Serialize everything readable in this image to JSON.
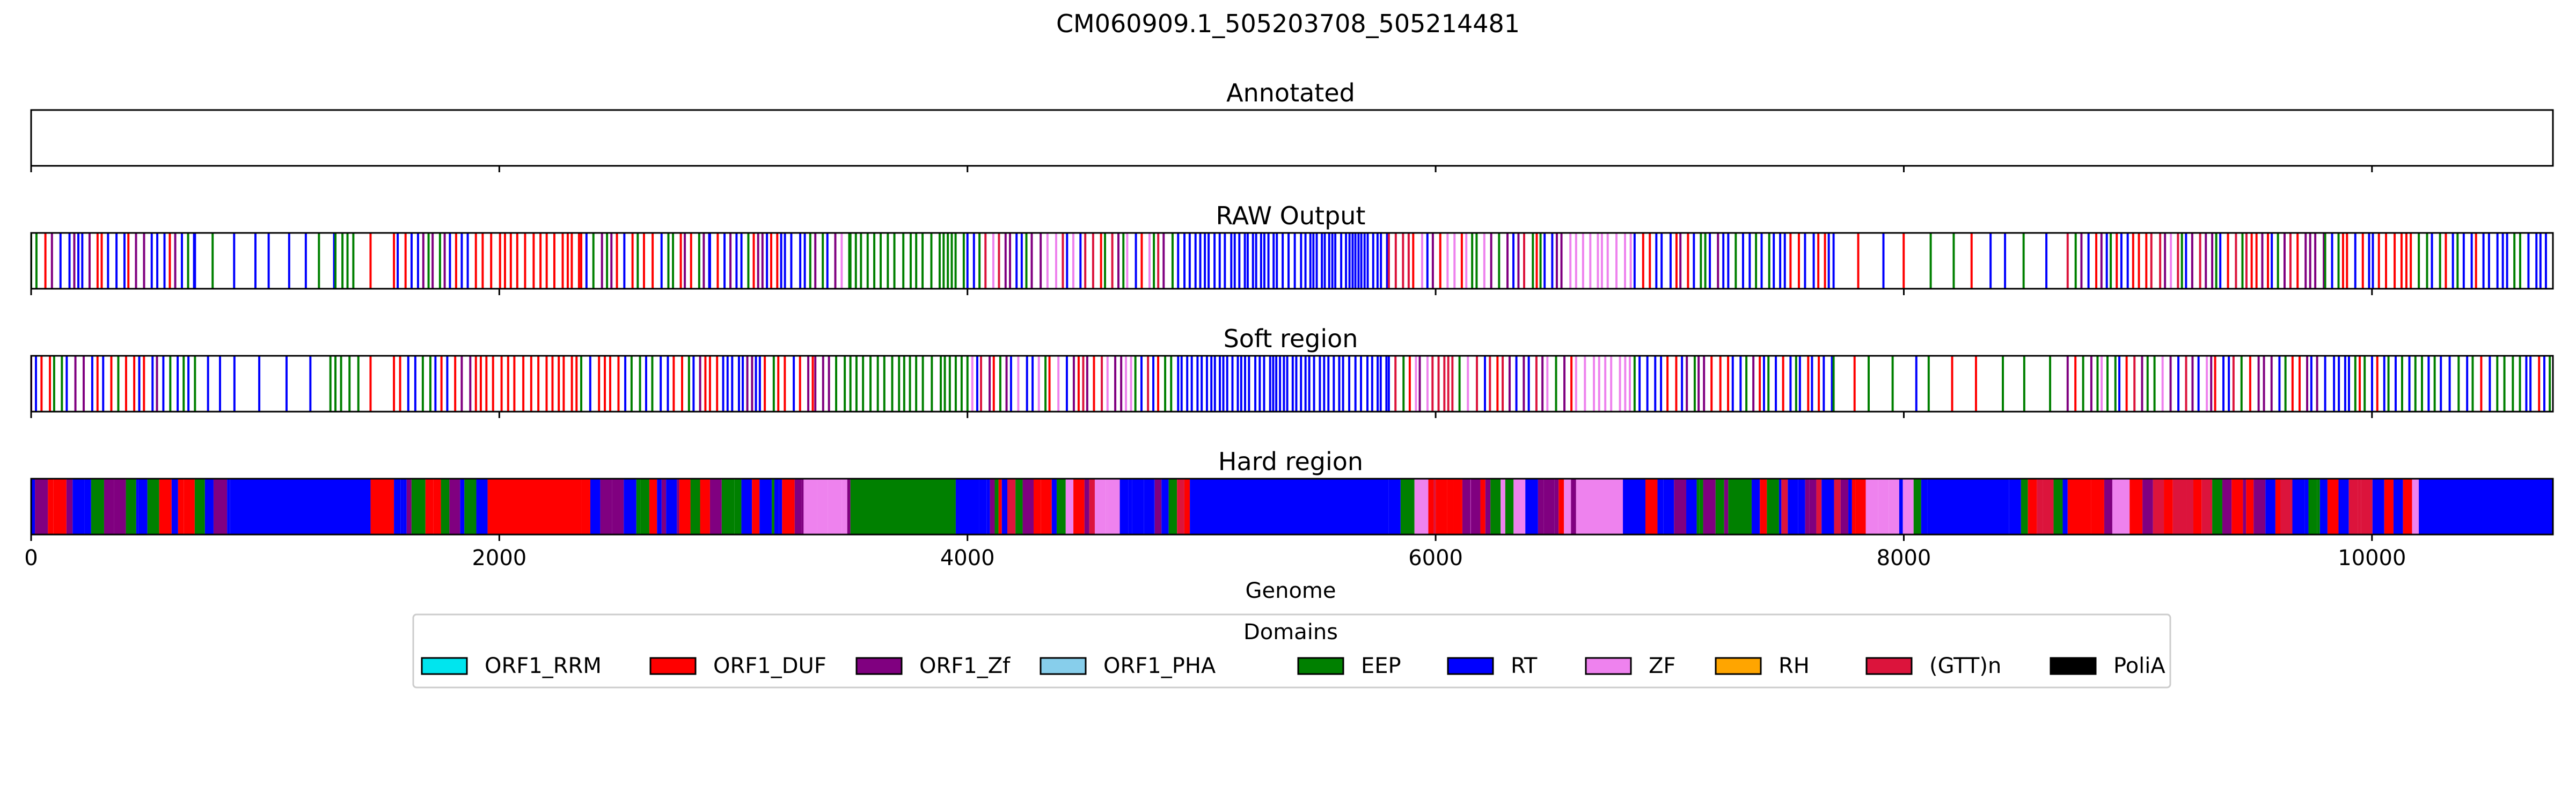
{
  "chart_data": {
    "type": "bar",
    "title": "CM060909.1_505203708_505214481",
    "xlabel": "Genome",
    "xlim": [
      0,
      10773
    ],
    "xticks": [
      0,
      2000,
      4000,
      6000,
      8000,
      10000
    ],
    "xtick_labels": [
      "0",
      "2000",
      "4000",
      "6000",
      "8000",
      "10000"
    ],
    "grid": false,
    "legend": {
      "title": "Domains",
      "placement": "bottom-center",
      "entries": [
        {
          "name": "ORF1_RRM",
          "color": "#00e5ee"
        },
        {
          "name": "ORF1_DUF",
          "color": "#ff0000"
        },
        {
          "name": "ORF1_Zf",
          "color": "#800080"
        },
        {
          "name": "ORF1_PHA",
          "color": "#87ceeb"
        },
        {
          "name": "EEP",
          "color": "#008000"
        },
        {
          "name": "RT",
          "color": "#0000ff"
        },
        {
          "name": "ZF",
          "color": "#ee82ee"
        },
        {
          "name": "RH",
          "color": "#ffa500"
        },
        {
          "name": "(GTT)n",
          "color": "#dc143c"
        },
        {
          "name": "PoliA",
          "color": "#000000"
        }
      ]
    },
    "panels": [
      {
        "title": "Annotated",
        "mode": "empty",
        "segments": []
      },
      {
        "title": "RAW Output",
        "mode": "lines",
        "segments": [
          {
            "start": 0,
            "end": 700,
            "domain": "mixed_RT_EEP"
          },
          {
            "start": 700,
            "end": 1300,
            "domain": "sparse_RT"
          },
          {
            "start": 1300,
            "end": 1400,
            "domain": "EEP"
          },
          {
            "start": 1450,
            "end": 1460,
            "domain": "ORF1_DUF"
          },
          {
            "start": 1550,
            "end": 1900,
            "domain": "mixed_RT_EEP"
          },
          {
            "start": 1900,
            "end": 2350,
            "domain": "ORF1_DUF"
          },
          {
            "start": 2350,
            "end": 2900,
            "domain": "mixed_RT_DUF"
          },
          {
            "start": 2900,
            "end": 3350,
            "domain": "mixed_RT_EEP"
          },
          {
            "start": 3350,
            "end": 3500,
            "domain": "ZF_mix"
          },
          {
            "start": 3500,
            "end": 4000,
            "domain": "EEP"
          },
          {
            "start": 4000,
            "end": 4900,
            "domain": "mixed_all"
          },
          {
            "start": 4900,
            "end": 5800,
            "domain": "RT"
          },
          {
            "start": 5800,
            "end": 6600,
            "domain": "mixed_all"
          },
          {
            "start": 6600,
            "end": 6850,
            "domain": "ZF"
          },
          {
            "start": 6850,
            "end": 7700,
            "domain": "mixed_RT_EEP"
          },
          {
            "start": 7700,
            "end": 8700,
            "domain": "sparse_mix"
          },
          {
            "start": 8700,
            "end": 9800,
            "domain": "mixed_all"
          },
          {
            "start": 9800,
            "end": 10773,
            "domain": "mixed_RT"
          }
        ]
      },
      {
        "title": "Soft region",
        "mode": "lines",
        "segments": [
          {
            "start": 0,
            "end": 700,
            "domain": "mixed_RT_EEP"
          },
          {
            "start": 700,
            "end": 1300,
            "domain": "sparse_RT"
          },
          {
            "start": 1300,
            "end": 1400,
            "domain": "EEP"
          },
          {
            "start": 1450,
            "end": 1460,
            "domain": "ORF1_DUF"
          },
          {
            "start": 1550,
            "end": 1900,
            "domain": "mixed_RT_EEP"
          },
          {
            "start": 1900,
            "end": 2350,
            "domain": "ORF1_DUF"
          },
          {
            "start": 2350,
            "end": 2900,
            "domain": "mixed_RT_DUF"
          },
          {
            "start": 2900,
            "end": 3350,
            "domain": "mixed_RT_EEP"
          },
          {
            "start": 3350,
            "end": 3500,
            "domain": "ZF_mix"
          },
          {
            "start": 3500,
            "end": 4000,
            "domain": "EEP"
          },
          {
            "start": 4000,
            "end": 4900,
            "domain": "mixed_all"
          },
          {
            "start": 4900,
            "end": 5800,
            "domain": "RT"
          },
          {
            "start": 5800,
            "end": 6600,
            "domain": "mixed_all"
          },
          {
            "start": 6600,
            "end": 6850,
            "domain": "ZF"
          },
          {
            "start": 6850,
            "end": 7700,
            "domain": "mixed_RT_EEP"
          },
          {
            "start": 7700,
            "end": 8700,
            "domain": "sparse_mix"
          },
          {
            "start": 8700,
            "end": 9800,
            "domain": "mixed_all"
          },
          {
            "start": 9800,
            "end": 10773,
            "domain": "mixed_RT"
          }
        ]
      },
      {
        "title": "Hard region",
        "mode": "blocks",
        "segments": [
          {
            "start": 0,
            "end": 850,
            "domain": "mixed_RT_EEP"
          },
          {
            "start": 850,
            "end": 1450,
            "domain": "RT"
          },
          {
            "start": 1450,
            "end": 1550,
            "domain": "ORF1_DUF"
          },
          {
            "start": 1550,
            "end": 1950,
            "domain": "mixed_RT_EEP"
          },
          {
            "start": 1950,
            "end": 2350,
            "domain": "ORF1_DUF"
          },
          {
            "start": 2350,
            "end": 2900,
            "domain": "mixed_RT_DUF"
          },
          {
            "start": 2900,
            "end": 3300,
            "domain": "mixed_RT_EEP"
          },
          {
            "start": 3300,
            "end": 3500,
            "domain": "ZF_mix"
          },
          {
            "start": 3500,
            "end": 3950,
            "domain": "EEP"
          },
          {
            "start": 3950,
            "end": 4050,
            "domain": "RT"
          },
          {
            "start": 4050,
            "end": 4600,
            "domain": "mixed_all"
          },
          {
            "start": 4600,
            "end": 4800,
            "domain": "ZF_mix"
          },
          {
            "start": 4800,
            "end": 4950,
            "domain": "mixed_all"
          },
          {
            "start": 4950,
            "end": 5800,
            "domain": "RT"
          },
          {
            "start": 5800,
            "end": 6000,
            "domain": "mixed_all"
          },
          {
            "start": 6000,
            "end": 6050,
            "domain": "ORF1_DUF"
          },
          {
            "start": 6050,
            "end": 6150,
            "domain": "mixed_all"
          },
          {
            "start": 6150,
            "end": 6600,
            "domain": "mixed_all"
          },
          {
            "start": 6600,
            "end": 6800,
            "domain": "ZF"
          },
          {
            "start": 6800,
            "end": 7250,
            "domain": "mixed_RT_EEP"
          },
          {
            "start": 7250,
            "end": 7350,
            "domain": "EEP"
          },
          {
            "start": 7350,
            "end": 8100,
            "domain": "mixed_all"
          },
          {
            "start": 8100,
            "end": 8450,
            "domain": "RT"
          },
          {
            "start": 8450,
            "end": 8700,
            "domain": "mixed_all"
          },
          {
            "start": 8700,
            "end": 8800,
            "domain": "ORF1_DUF"
          },
          {
            "start": 8800,
            "end": 10200,
            "domain": "mixed_all"
          },
          {
            "start": 10200,
            "end": 10773,
            "domain": "RT"
          }
        ]
      }
    ]
  }
}
